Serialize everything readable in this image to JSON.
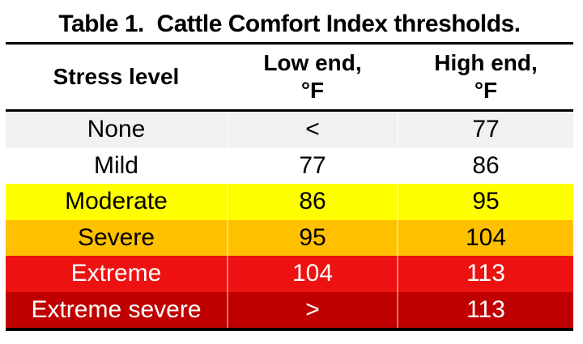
{
  "title": "Table 1.  Cattle Comfort Index thresholds.",
  "header": {
    "stress_level": "Stress level",
    "low_end_line1": "Low end,",
    "low_end_line2": "°F",
    "high_end_line1": "High end,",
    "high_end_line2": "°F"
  },
  "chart_data": {
    "type": "table",
    "title": "Table 1.  Cattle Comfort Index thresholds.",
    "columns": [
      "Stress level",
      "Low end, °F",
      "High end, °F"
    ],
    "rows": [
      [
        "None",
        "<",
        "77"
      ],
      [
        "Mild",
        "77",
        "86"
      ],
      [
        "Moderate",
        "86",
        "95"
      ],
      [
        "Severe",
        "95",
        "104"
      ],
      [
        "Extreme",
        "104",
        "113"
      ],
      [
        "Extreme severe",
        ">",
        "113"
      ]
    ],
    "row_background_colors": [
      "#F1F1F1",
      "#FFFFFF",
      "#FFFF00",
      "#FFC000",
      "#EE1111",
      "#C00000"
    ],
    "row_text_colors": [
      "#000000",
      "#000000",
      "#000000",
      "#000000",
      "#FFFFFF",
      "#FFFFFF"
    ],
    "border_color": "#000000"
  }
}
